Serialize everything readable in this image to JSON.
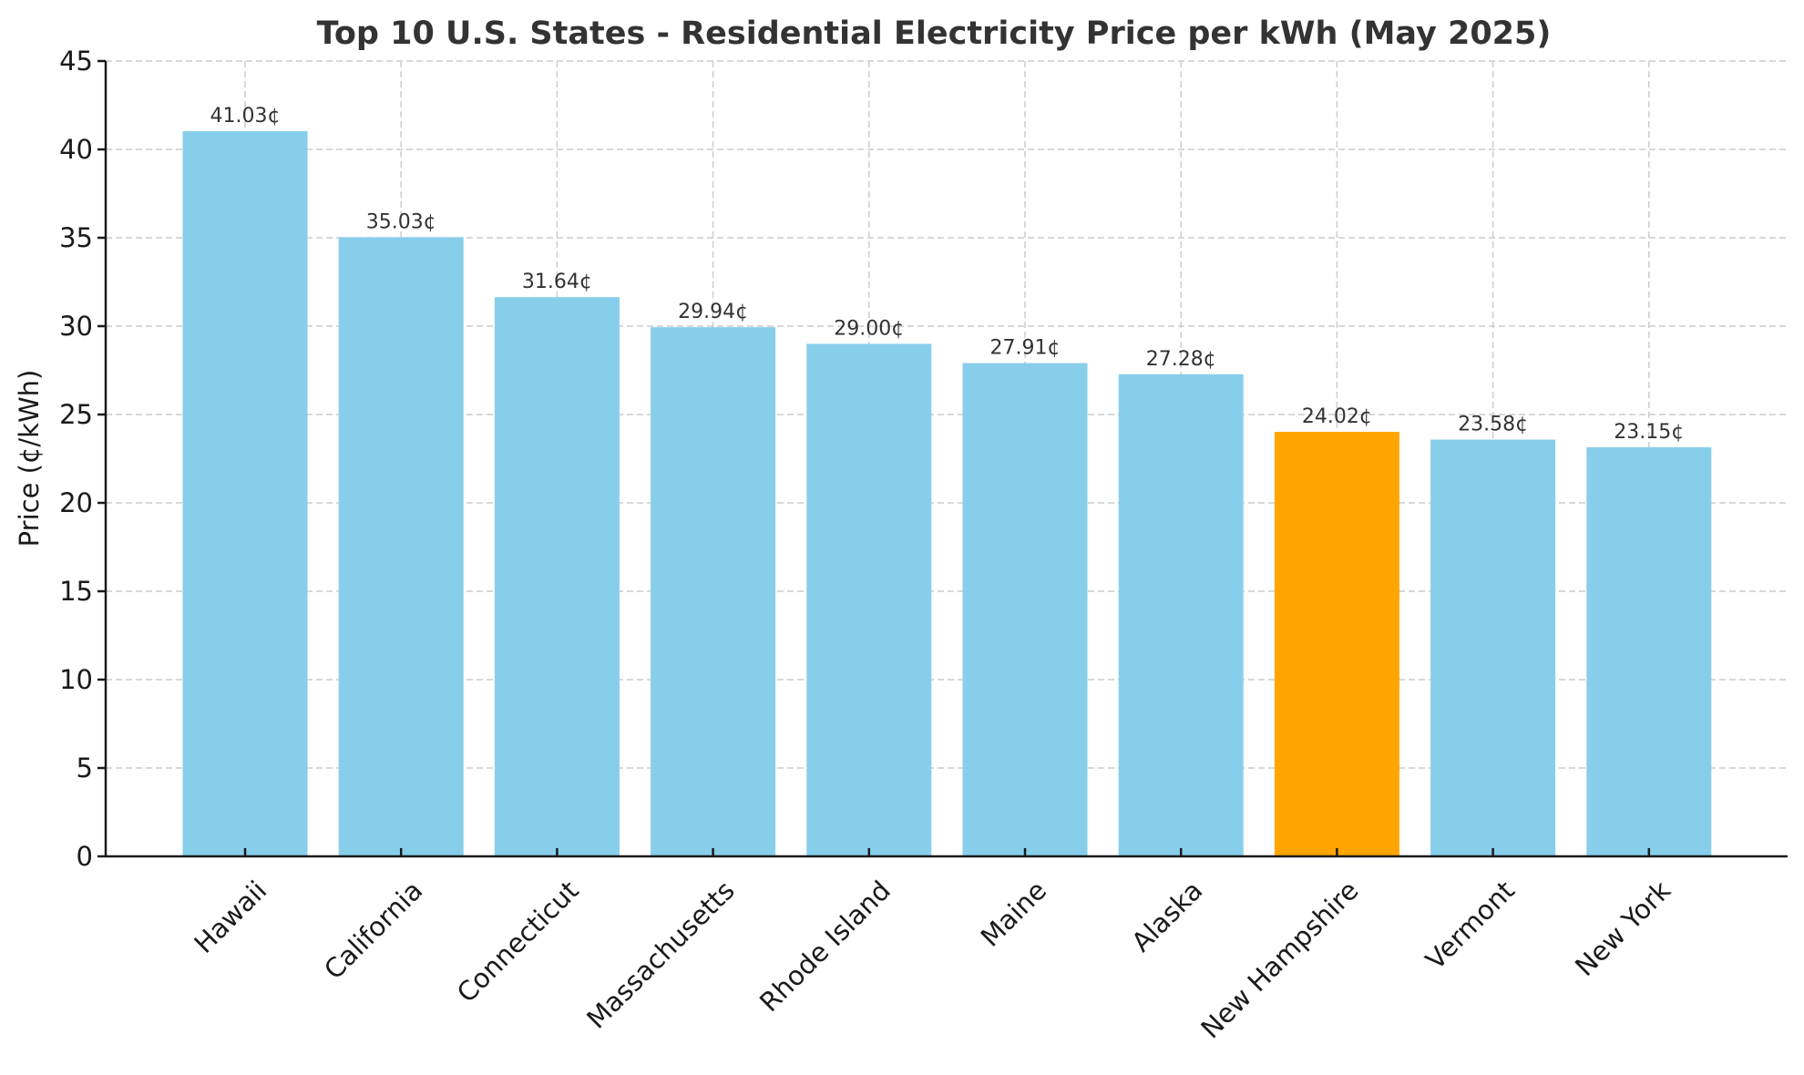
{
  "chart_data": {
    "type": "bar",
    "title": "Top 10 U.S. States - Residential Electricity Price per kWh (May 2025)",
    "xlabel": "",
    "ylabel": "Price (¢/kWh)",
    "ylim": [
      0,
      45
    ],
    "yticks": [
      0,
      5,
      10,
      15,
      20,
      25,
      30,
      35,
      40,
      45
    ],
    "grid": true,
    "legend": null,
    "categories": [
      "Hawaii",
      "California",
      "Connecticut",
      "Massachusetts",
      "Rhode Island",
      "Maine",
      "Alaska",
      "New Hampshire",
      "Vermont",
      "New York"
    ],
    "values": [
      41.03,
      35.03,
      31.64,
      29.94,
      29.0,
      27.91,
      27.28,
      24.02,
      23.58,
      23.15
    ],
    "data_labels": [
      "41.03¢",
      "35.03¢",
      "31.64¢",
      "29.94¢",
      "29.00¢",
      "27.91¢",
      "27.28¢",
      "24.02¢",
      "23.58¢",
      "23.15¢"
    ],
    "colors": {
      "default_bar": "#87ceeb",
      "highlight_bar": "#ffa500",
      "highlight_category": "New Hampshire"
    },
    "xtick_rotation_deg": 45
  }
}
